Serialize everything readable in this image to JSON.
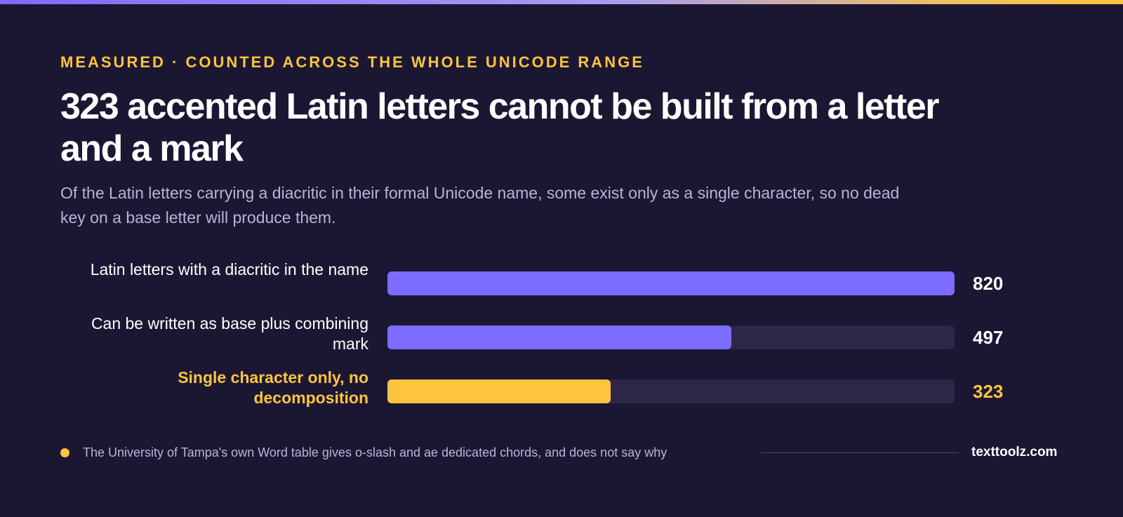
{
  "kicker": "MEASURED · COUNTED ACROSS THE WHOLE UNICODE RANGE",
  "title": "323 accented Latin letters cannot be built from a letter and a mark",
  "subtitle": "Of the Latin letters carrying a diacritic in their formal Unicode name, some exist only as a single character, so no dead key on a base letter will produce them.",
  "chart_data": {
    "type": "bar",
    "orientation": "horizontal",
    "categories": [
      "Latin letters with a diacritic in the name",
      "Can be written as base plus combining mark",
      "Single character only, no decomposition"
    ],
    "values": [
      820,
      497,
      323
    ],
    "value_labels": [
      "820",
      "497",
      "323"
    ],
    "xlim": [
      0,
      820
    ],
    "highlight_index": 2,
    "colors": [
      "#7c6cff",
      "#7c6cff",
      "#ffc43d"
    ],
    "track_color": "#2d2649",
    "grid": false
  },
  "footer": {
    "note": "The University of Tampa's own Word table gives o-slash and ae dedicated chords, and does not say why",
    "brand": "texttoolz.com"
  },
  "colors": {
    "background": "#1b1733",
    "accent": "#ffc43d",
    "bar": "#7c6cff",
    "muted_text": "#b9b3d8"
  }
}
